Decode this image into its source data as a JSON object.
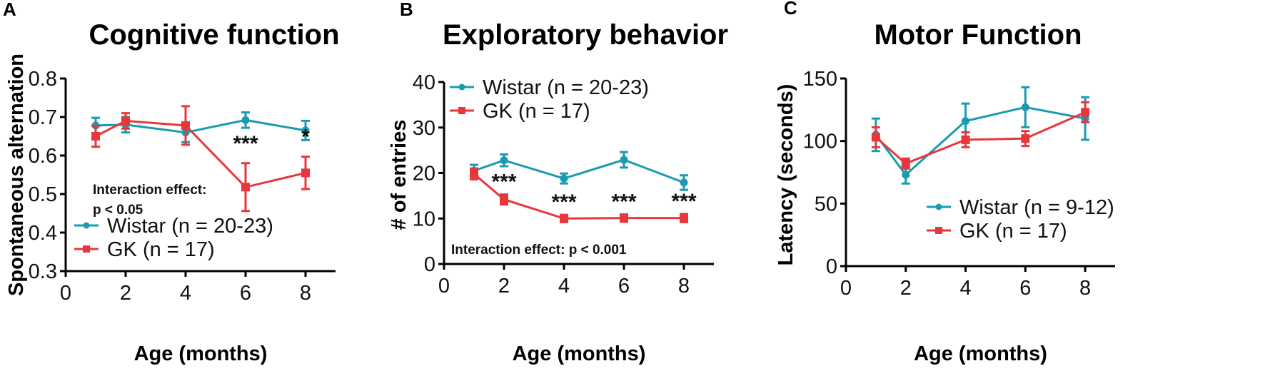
{
  "colors": {
    "wistar": "#1a9bb0",
    "gk": "#e8373c"
  },
  "chart_data": [
    {
      "type": "line",
      "panel": "A",
      "title": "Cognitive function",
      "xlabel": "Age (months)",
      "ylabel": "Spontaneous alternation",
      "xlim": [
        0,
        9
      ],
      "ylim": [
        0.3,
        0.8
      ],
      "xticks": [
        "0",
        "2",
        "4",
        "6",
        "8"
      ],
      "yticks": [
        "0.3",
        "0.4",
        "0.5",
        "0.6",
        "0.7",
        "0.8"
      ],
      "x": [
        1,
        2,
        4,
        6,
        8
      ],
      "series": [
        {
          "name": "Wistar (n = 20-23)",
          "key": "wistar",
          "values": [
            0.678,
            0.68,
            0.66,
            0.692,
            0.665
          ],
          "errors": [
            0.02,
            0.02,
            0.025,
            0.02,
            0.025
          ]
        },
        {
          "name": "GK (n = 17)",
          "key": "gk",
          "values": [
            0.65,
            0.69,
            0.678,
            0.518,
            0.555
          ],
          "errors": [
            0.027,
            0.02,
            0.05,
            0.062,
            0.042
          ]
        }
      ],
      "annotations": [
        "Interaction effect:",
        "p < 0.05"
      ],
      "significance": [
        {
          "x": 6,
          "label": "***"
        },
        {
          "x": 8,
          "label": "*"
        }
      ],
      "legend": "bottom-left"
    },
    {
      "type": "line",
      "panel": "B",
      "title": "Exploratory behavior",
      "xlabel": "Age (months)",
      "ylabel": "# of entries",
      "xlim": [
        0,
        9
      ],
      "ylim": [
        0,
        40
      ],
      "xticks": [
        "0",
        "2",
        "4",
        "6",
        "8"
      ],
      "yticks": [
        "0",
        "10",
        "20",
        "30",
        "40"
      ],
      "x": [
        1,
        2,
        4,
        6,
        8
      ],
      "series": [
        {
          "name": "Wistar (n = 20-23)",
          "key": "wistar",
          "values": [
            20.5,
            22.8,
            18.8,
            22.9,
            17.9
          ],
          "errors": [
            1.3,
            1.3,
            1.1,
            1.7,
            1.6
          ]
        },
        {
          "name": "GK (n = 17)",
          "key": "gk",
          "values": [
            19.8,
            14.2,
            10.0,
            10.1,
            10.1
          ],
          "errors": [
            1.2,
            1.1,
            0.8,
            0.8,
            0.9
          ]
        }
      ],
      "annotations": [
        "Interaction effect: p < 0.001"
      ],
      "significance": [
        {
          "x": 2,
          "label": "***"
        },
        {
          "x": 4,
          "label": "***"
        },
        {
          "x": 6,
          "label": "***"
        },
        {
          "x": 8,
          "label": "***"
        }
      ],
      "legend": "top-left"
    },
    {
      "type": "line",
      "panel": "C",
      "title": "Motor Function",
      "xlabel": "Age (months)",
      "ylabel": "Latency (seconds)",
      "xlim": [
        0,
        9
      ],
      "ylim": [
        0,
        150
      ],
      "xticks": [
        "0",
        "2",
        "4",
        "6",
        "8"
      ],
      "yticks": [
        "0",
        "50",
        "100",
        "150"
      ],
      "x": [
        1,
        2,
        4,
        6,
        8
      ],
      "series": [
        {
          "name": "Wistar (n = 9-12)",
          "key": "wistar",
          "values": [
            105,
            73,
            116,
            127,
            118
          ],
          "errors": [
            13,
            7,
            14,
            16,
            17
          ]
        },
        {
          "name": "GK (n = 17)",
          "key": "gk",
          "values": [
            103,
            82,
            101,
            102,
            123
          ],
          "errors": [
            8,
            4,
            6,
            6,
            8
          ]
        }
      ],
      "annotations": [],
      "significance": [],
      "legend": "bottom-right"
    }
  ]
}
